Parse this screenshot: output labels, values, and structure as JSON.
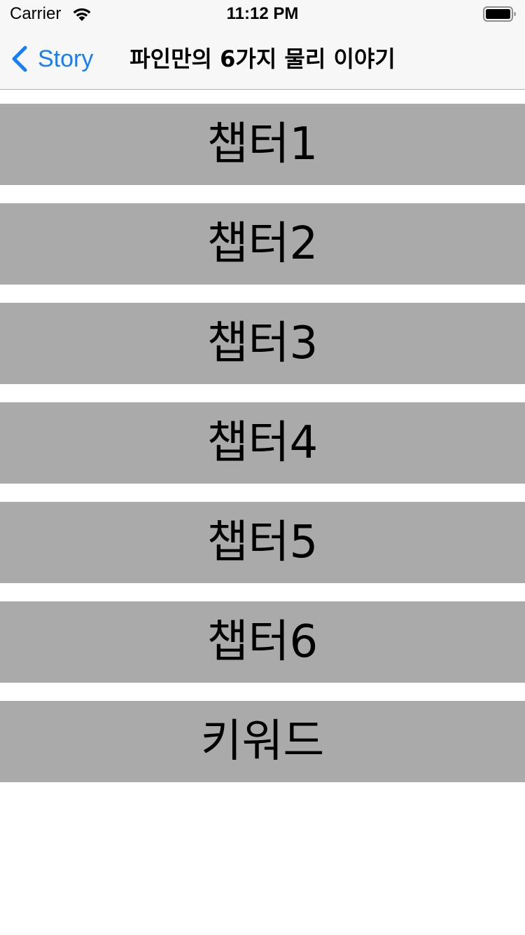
{
  "status_bar": {
    "carrier": "Carrier",
    "time": "11:12 PM",
    "wifi_icon": "wifi-icon",
    "battery_icon": "battery-full-icon"
  },
  "nav_bar": {
    "back_label": "Story",
    "back_icon": "chevron-left-icon",
    "title": "파인만의 6가지 물리 이야기",
    "tint_color": "#157efb"
  },
  "chapters": [
    {
      "label": "챕터1"
    },
    {
      "label": "챕터2"
    },
    {
      "label": "챕터3"
    },
    {
      "label": "챕터4"
    },
    {
      "label": "챕터5"
    },
    {
      "label": "챕터6"
    },
    {
      "label": "키워드"
    }
  ],
  "colors": {
    "button_background": "#aaaaaa",
    "nav_background": "#f7f7f7"
  }
}
